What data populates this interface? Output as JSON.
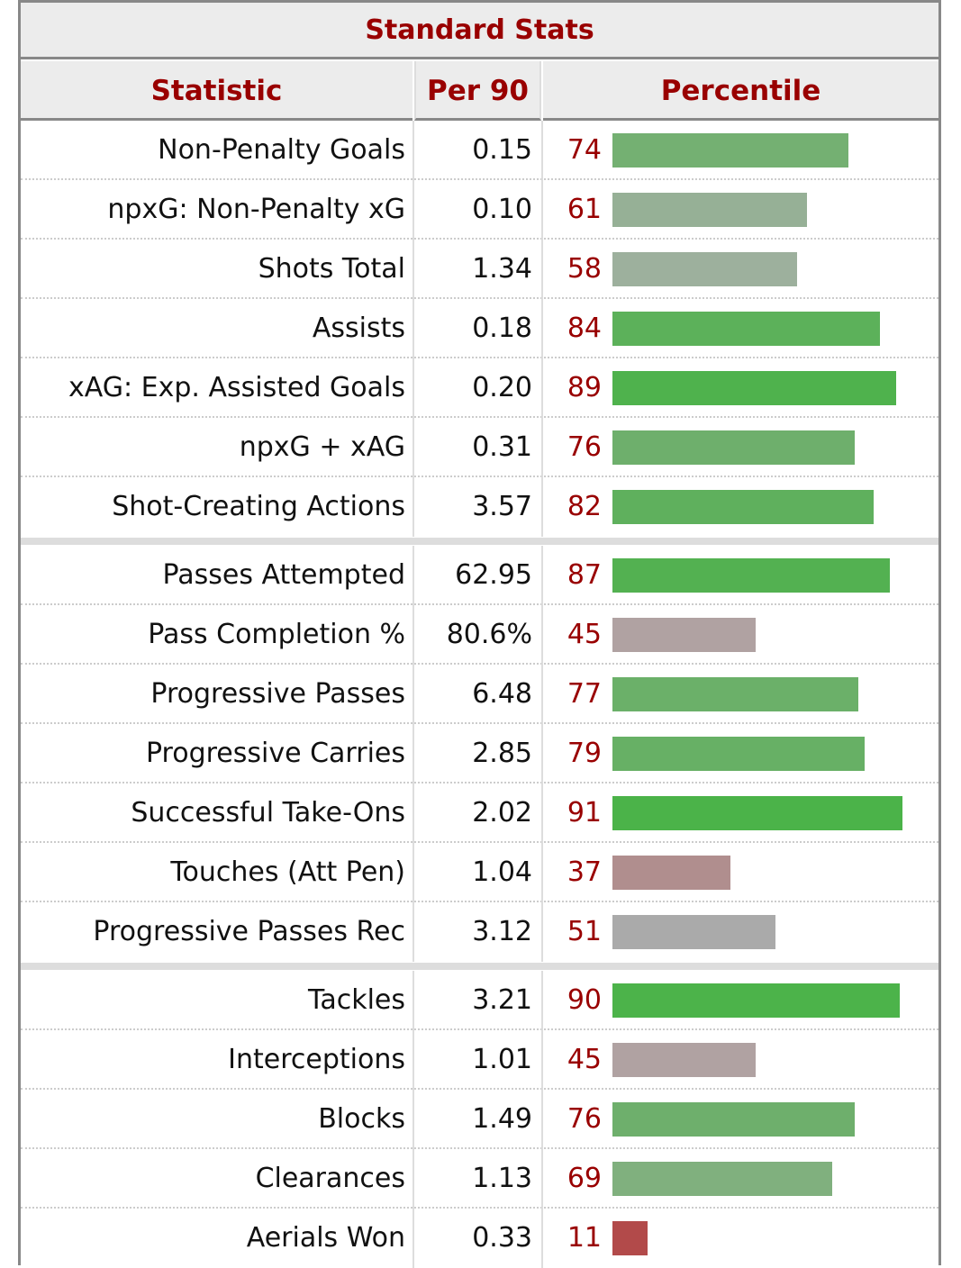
{
  "table": {
    "title": "Standard Stats",
    "headers": [
      "Statistic",
      "Per 90",
      "Percentile"
    ],
    "bar_scale_max": 100,
    "groups": [
      [
        {
          "statistic": "Non-Penalty Goals",
          "per90": "0.15",
          "percentile": 74,
          "color": "#74b072"
        },
        {
          "statistic": "npxG: Non-Penalty xG",
          "per90": "0.10",
          "percentile": 61,
          "color": "#96b096"
        },
        {
          "statistic": "Shots Total",
          "per90": "1.34",
          "percentile": 58,
          "color": "#9db09d"
        },
        {
          "statistic": "Assists",
          "per90": "0.18",
          "percentile": 84,
          "color": "#5cb15a"
        },
        {
          "statistic": "xAG: Exp. Assisted Goals",
          "per90": "0.20",
          "percentile": 89,
          "color": "#4fb24d"
        },
        {
          "statistic": "npxG + xAG",
          "per90": "0.31",
          "percentile": 76,
          "color": "#6eaf6c"
        },
        {
          "statistic": "Shot-Creating Actions",
          "per90": "3.57",
          "percentile": 82,
          "color": "#5fb05d"
        }
      ],
      [
        {
          "statistic": "Passes Attempted",
          "per90": "62.95",
          "percentile": 87,
          "color": "#53b151"
        },
        {
          "statistic": "Pass Completion %",
          "per90": "80.6%",
          "percentile": 45,
          "color": "#b0a2a2"
        },
        {
          "statistic": "Progressive Passes",
          "per90": "6.48",
          "percentile": 77,
          "color": "#6bb069"
        },
        {
          "statistic": "Progressive Carries",
          "per90": "2.85",
          "percentile": 79,
          "color": "#67b065"
        },
        {
          "statistic": "Successful Take-Ons",
          "per90": "2.02",
          "percentile": 91,
          "color": "#4bb349"
        },
        {
          "statistic": "Touches (Att Pen)",
          "per90": "1.04",
          "percentile": 37,
          "color": "#b08e8e"
        },
        {
          "statistic": "Progressive Passes Rec",
          "per90": "3.12",
          "percentile": 51,
          "color": "#aaaaaa"
        }
      ],
      [
        {
          "statistic": "Tackles",
          "per90": "3.21",
          "percentile": 90,
          "color": "#4cb34a"
        },
        {
          "statistic": "Interceptions",
          "per90": "1.01",
          "percentile": 45,
          "color": "#b0a2a2"
        },
        {
          "statistic": "Blocks",
          "per90": "1.49",
          "percentile": 76,
          "color": "#6eaf6c"
        },
        {
          "statistic": "Clearances",
          "per90": "1.13",
          "percentile": 69,
          "color": "#80b07e"
        },
        {
          "statistic": "Aerials Won",
          "per90": "0.33",
          "percentile": 11,
          "color": "#b24a4a"
        }
      ]
    ]
  }
}
